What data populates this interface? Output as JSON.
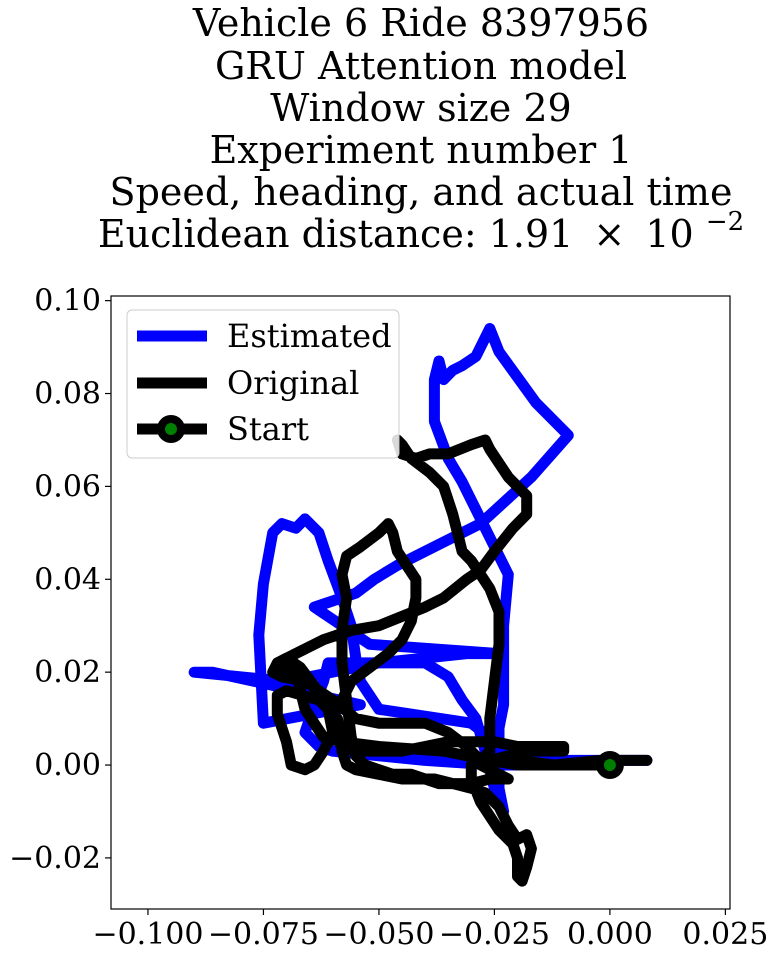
{
  "chart_data": {
    "type": "line",
    "title_lines": [
      "Vehicle 6 Ride 8397956",
      "GRU Attention model",
      "Window size 29",
      "Experiment number 1",
      "Speed, heading, and actual time"
    ],
    "title_distance": {
      "prefix": "Euclidean distance: 1.91",
      "times": "×",
      "base": "10",
      "exponent": "−2"
    },
    "xlim": [
      -0.108,
      0.026
    ],
    "ylim": [
      -0.031,
      0.101
    ],
    "x_ticks": [
      {
        "value": -0.1,
        "label": "−0.100"
      },
      {
        "value": -0.075,
        "label": "−0.075"
      },
      {
        "value": -0.05,
        "label": "−0.050"
      },
      {
        "value": -0.025,
        "label": "−0.025"
      },
      {
        "value": 0.0,
        "label": "0.000"
      },
      {
        "value": 0.025,
        "label": "0.025"
      }
    ],
    "y_ticks": [
      {
        "value": -0.02,
        "label": "−0.02"
      },
      {
        "value": 0.0,
        "label": "0.00"
      },
      {
        "value": 0.02,
        "label": "0.02"
      },
      {
        "value": 0.04,
        "label": "0.04"
      },
      {
        "value": 0.06,
        "label": "0.06"
      },
      {
        "value": 0.08,
        "label": "0.08"
      },
      {
        "value": 0.1,
        "label": "0.10"
      }
    ],
    "legend": {
      "position": "upper-left",
      "entries": [
        {
          "label": "Estimated",
          "color": "#0000ff",
          "marker": "none"
        },
        {
          "label": "Original",
          "color": "#000000",
          "marker": "none"
        },
        {
          "label": "Start",
          "color": "#000000",
          "marker": "circle",
          "marker_fill": "#008000"
        }
      ]
    },
    "series": [
      {
        "name": "Estimated",
        "color": "#0000ff",
        "points": [
          [
            0.008,
            0.001
          ],
          [
            -0.01,
            0.001
          ],
          [
            -0.02,
            0.001
          ],
          [
            -0.024,
            0.003
          ],
          [
            -0.024,
            0.008
          ],
          [
            -0.023,
            0.013
          ],
          [
            -0.023,
            0.03
          ],
          [
            -0.022,
            0.041
          ],
          [
            -0.032,
            0.061
          ],
          [
            -0.035,
            0.066
          ],
          [
            -0.038,
            0.074
          ],
          [
            -0.038,
            0.083
          ],
          [
            -0.037,
            0.087
          ],
          [
            -0.036,
            0.083
          ],
          [
            -0.034,
            0.085
          ],
          [
            -0.032,
            0.086
          ],
          [
            -0.029,
            0.088
          ],
          [
            -0.026,
            0.094
          ],
          [
            -0.024,
            0.089
          ],
          [
            -0.016,
            0.078
          ],
          [
            -0.009,
            0.071
          ],
          [
            -0.017,
            0.062
          ],
          [
            -0.028,
            0.052
          ],
          [
            -0.036,
            0.048
          ],
          [
            -0.046,
            0.043
          ],
          [
            -0.051,
            0.04
          ],
          [
            -0.055,
            0.037
          ],
          [
            -0.061,
            0.035
          ],
          [
            -0.064,
            0.034
          ],
          [
            -0.058,
            0.03
          ],
          [
            -0.052,
            0.026
          ],
          [
            -0.024,
            0.024
          ],
          [
            -0.031,
            0.024
          ],
          [
            -0.05,
            0.022
          ],
          [
            -0.07,
            0.018
          ],
          [
            -0.09,
            0.02
          ],
          [
            -0.086,
            0.02
          ],
          [
            -0.054,
            0.013
          ],
          [
            -0.075,
            0.009
          ],
          [
            -0.076,
            0.028
          ],
          [
            -0.075,
            0.039
          ],
          [
            -0.073,
            0.05
          ],
          [
            -0.071,
            0.052
          ],
          [
            -0.068,
            0.051
          ],
          [
            -0.066,
            0.053
          ],
          [
            -0.063,
            0.05
          ],
          [
            -0.061,
            0.044
          ],
          [
            -0.058,
            0.036
          ],
          [
            -0.056,
            0.03
          ],
          [
            -0.055,
            0.023
          ],
          [
            -0.054,
            0.018
          ],
          [
            -0.05,
            0.012
          ],
          [
            -0.03,
            0.009
          ],
          [
            -0.026,
            0.006
          ],
          [
            -0.025,
            0.003
          ],
          [
            -0.024,
            0.0
          ],
          [
            -0.024,
            -0.005
          ],
          [
            -0.023,
            -0.01
          ],
          [
            -0.025,
            -0.005
          ],
          [
            -0.027,
            0.003
          ],
          [
            -0.029,
            0.01
          ],
          [
            -0.032,
            0.014
          ],
          [
            -0.035,
            0.019
          ],
          [
            -0.04,
            0.022
          ],
          [
            -0.055,
            0.022
          ],
          [
            -0.061,
            0.022
          ],
          [
            -0.062,
            0.018
          ],
          [
            -0.064,
            0.013
          ],
          [
            -0.066,
            0.007
          ],
          [
            -0.063,
            0.004
          ],
          [
            -0.06,
            0.003
          ],
          [
            -0.05,
            0.002
          ],
          [
            -0.04,
            0.001
          ],
          [
            -0.025,
            0.0
          ],
          [
            -0.01,
            0.0
          ],
          [
            0.0,
            0.0
          ]
        ]
      },
      {
        "name": "Original",
        "color": "#000000",
        "points": [
          [
            0.008,
            0.001
          ],
          [
            -0.002,
            0.001
          ],
          [
            -0.012,
            0.0
          ],
          [
            -0.02,
            0.0
          ],
          [
            -0.026,
            0.001
          ],
          [
            -0.036,
            0.003
          ],
          [
            -0.05,
            0.004
          ],
          [
            -0.058,
            0.005
          ],
          [
            -0.062,
            0.006
          ],
          [
            -0.066,
            0.012
          ],
          [
            -0.068,
            0.02
          ],
          [
            -0.072,
            0.022
          ],
          [
            -0.07,
            0.023
          ],
          [
            -0.067,
            0.021
          ],
          [
            -0.064,
            0.017
          ],
          [
            -0.061,
            0.012
          ],
          [
            -0.06,
            0.007
          ],
          [
            -0.062,
            0.003
          ],
          [
            -0.064,
            0.0
          ],
          [
            -0.066,
            -0.001
          ],
          [
            -0.069,
            0.0
          ],
          [
            -0.07,
            0.005
          ],
          [
            -0.072,
            0.011
          ],
          [
            -0.072,
            0.015
          ],
          [
            -0.07,
            0.016
          ],
          [
            -0.063,
            0.014
          ],
          [
            -0.059,
            0.01
          ],
          [
            -0.058,
            0.006
          ],
          [
            -0.058,
            0.003
          ],
          [
            -0.057,
            0.0
          ],
          [
            -0.055,
            -0.001
          ],
          [
            -0.05,
            -0.002
          ],
          [
            -0.045,
            -0.003
          ],
          [
            -0.038,
            -0.003
          ],
          [
            -0.034,
            -0.004
          ],
          [
            -0.03,
            -0.005
          ],
          [
            -0.027,
            -0.006
          ],
          [
            -0.024,
            -0.009
          ],
          [
            -0.022,
            -0.013
          ],
          [
            -0.02,
            -0.016
          ],
          [
            -0.018,
            -0.015
          ],
          [
            -0.017,
            -0.018
          ],
          [
            -0.018,
            -0.022
          ],
          [
            -0.019,
            -0.025
          ],
          [
            -0.02,
            -0.024
          ],
          [
            -0.02,
            -0.02
          ],
          [
            -0.021,
            -0.017
          ],
          [
            -0.024,
            -0.014
          ],
          [
            -0.028,
            -0.008
          ],
          [
            -0.03,
            -0.003
          ],
          [
            -0.03,
            0.0
          ],
          [
            -0.028,
            0.001
          ],
          [
            -0.026,
            0.003
          ],
          [
            -0.026,
            0.01
          ],
          [
            -0.025,
            0.018
          ],
          [
            -0.024,
            0.026
          ],
          [
            -0.024,
            0.033
          ],
          [
            -0.026,
            0.038
          ],
          [
            -0.028,
            0.041
          ],
          [
            -0.03,
            0.044
          ],
          [
            -0.032,
            0.046
          ],
          [
            -0.033,
            0.05
          ],
          [
            -0.034,
            0.054
          ],
          [
            -0.036,
            0.06
          ],
          [
            -0.039,
            0.063
          ],
          [
            -0.043,
            0.066
          ],
          [
            -0.045,
            0.069
          ],
          [
            -0.046,
            0.07
          ],
          [
            -0.045,
            0.067
          ],
          [
            -0.042,
            0.066
          ],
          [
            -0.039,
            0.067
          ],
          [
            -0.035,
            0.067
          ],
          [
            -0.03,
            0.069
          ],
          [
            -0.027,
            0.07
          ],
          [
            -0.026,
            0.068
          ],
          [
            -0.022,
            0.062
          ],
          [
            -0.018,
            0.058
          ],
          [
            -0.018,
            0.054
          ],
          [
            -0.021,
            0.051
          ],
          [
            -0.025,
            0.046
          ],
          [
            -0.028,
            0.042
          ],
          [
            -0.031,
            0.04
          ],
          [
            -0.036,
            0.036
          ],
          [
            -0.04,
            0.034
          ],
          [
            -0.045,
            0.032
          ],
          [
            -0.05,
            0.03
          ],
          [
            -0.056,
            0.029
          ],
          [
            -0.062,
            0.027
          ],
          [
            -0.068,
            0.024
          ],
          [
            -0.072,
            0.022
          ],
          [
            -0.073,
            0.02
          ],
          [
            -0.071,
            0.019
          ],
          [
            -0.066,
            0.018
          ],
          [
            -0.06,
            0.014
          ],
          [
            -0.055,
            0.01
          ],
          [
            -0.05,
            0.009
          ],
          [
            -0.045,
            0.009
          ],
          [
            -0.04,
            0.009
          ],
          [
            -0.035,
            0.007
          ],
          [
            -0.031,
            0.004
          ],
          [
            -0.029,
            0.002
          ],
          [
            -0.028,
            0.0
          ],
          [
            -0.026,
            -0.001
          ],
          [
            -0.024,
            -0.002
          ],
          [
            -0.022,
            -0.003
          ],
          [
            -0.026,
            -0.003
          ],
          [
            -0.03,
            -0.004
          ],
          [
            -0.034,
            -0.004
          ],
          [
            -0.037,
            -0.004
          ],
          [
            -0.04,
            -0.003
          ],
          [
            -0.043,
            -0.002
          ],
          [
            -0.047,
            -0.002
          ],
          [
            -0.05,
            -0.001
          ],
          [
            -0.053,
            0.0
          ],
          [
            -0.055,
            0.002
          ],
          [
            -0.056,
            0.006
          ],
          [
            -0.057,
            0.014
          ],
          [
            -0.058,
            0.022
          ],
          [
            -0.058,
            0.029
          ],
          [
            -0.057,
            0.036
          ],
          [
            -0.058,
            0.041
          ],
          [
            -0.057,
            0.045
          ],
          [
            -0.054,
            0.047
          ],
          [
            -0.05,
            0.05
          ],
          [
            -0.048,
            0.052
          ],
          [
            -0.047,
            0.05
          ],
          [
            -0.046,
            0.046
          ],
          [
            -0.044,
            0.043
          ],
          [
            -0.042,
            0.04
          ],
          [
            -0.042,
            0.036
          ],
          [
            -0.043,
            0.031
          ],
          [
            -0.045,
            0.027
          ],
          [
            -0.048,
            0.024
          ],
          [
            -0.052,
            0.021
          ],
          [
            -0.056,
            0.018
          ],
          [
            -0.058,
            0.014
          ],
          [
            -0.06,
            0.011
          ],
          [
            -0.06,
            0.007
          ],
          [
            -0.058,
            0.004
          ],
          [
            -0.055,
            0.003
          ],
          [
            -0.05,
            0.003
          ],
          [
            -0.045,
            0.003
          ],
          [
            -0.04,
            0.004
          ],
          [
            -0.035,
            0.005
          ],
          [
            -0.03,
            0.005
          ],
          [
            -0.025,
            0.005
          ],
          [
            -0.02,
            0.004
          ],
          [
            -0.014,
            0.004
          ],
          [
            -0.01,
            0.004
          ],
          [
            -0.01,
            0.003
          ],
          [
            -0.014,
            0.003
          ],
          [
            -0.018,
            0.003
          ],
          [
            -0.022,
            0.002
          ],
          [
            -0.026,
            0.001
          ],
          [
            -0.02,
            0.001
          ],
          [
            -0.012,
            0.0
          ],
          [
            -0.005,
            0.0
          ],
          [
            0.0,
            0.0
          ]
        ]
      }
    ],
    "start_point": {
      "name": "Start",
      "x": 0.0,
      "y": 0.0,
      "color": "#000000",
      "fill": "#008000"
    }
  }
}
